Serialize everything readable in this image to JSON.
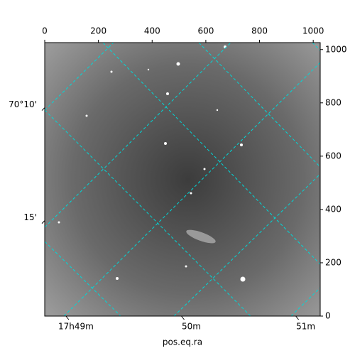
{
  "chart_data": {
    "type": "image",
    "xlabel": "pos.eq.ra",
    "xlim": [
      0,
      1026
    ],
    "ylim": [
      0,
      1026
    ],
    "xticks": [
      0,
      200,
      400,
      600,
      800,
      1000
    ],
    "yticks": [
      0,
      200,
      400,
      600,
      800,
      1000
    ],
    "ra_ticks": [
      {
        "value": 79,
        "label": "17h49m"
      },
      {
        "value": 509,
        "label": "50m"
      },
      {
        "value": 935,
        "label": "51m"
      }
    ],
    "dec_ticks": [
      {
        "value": 782,
        "label": "70°10'"
      },
      {
        "value": 358,
        "label": "15'"
      }
    ],
    "grid_color": "#00d8d8"
  }
}
